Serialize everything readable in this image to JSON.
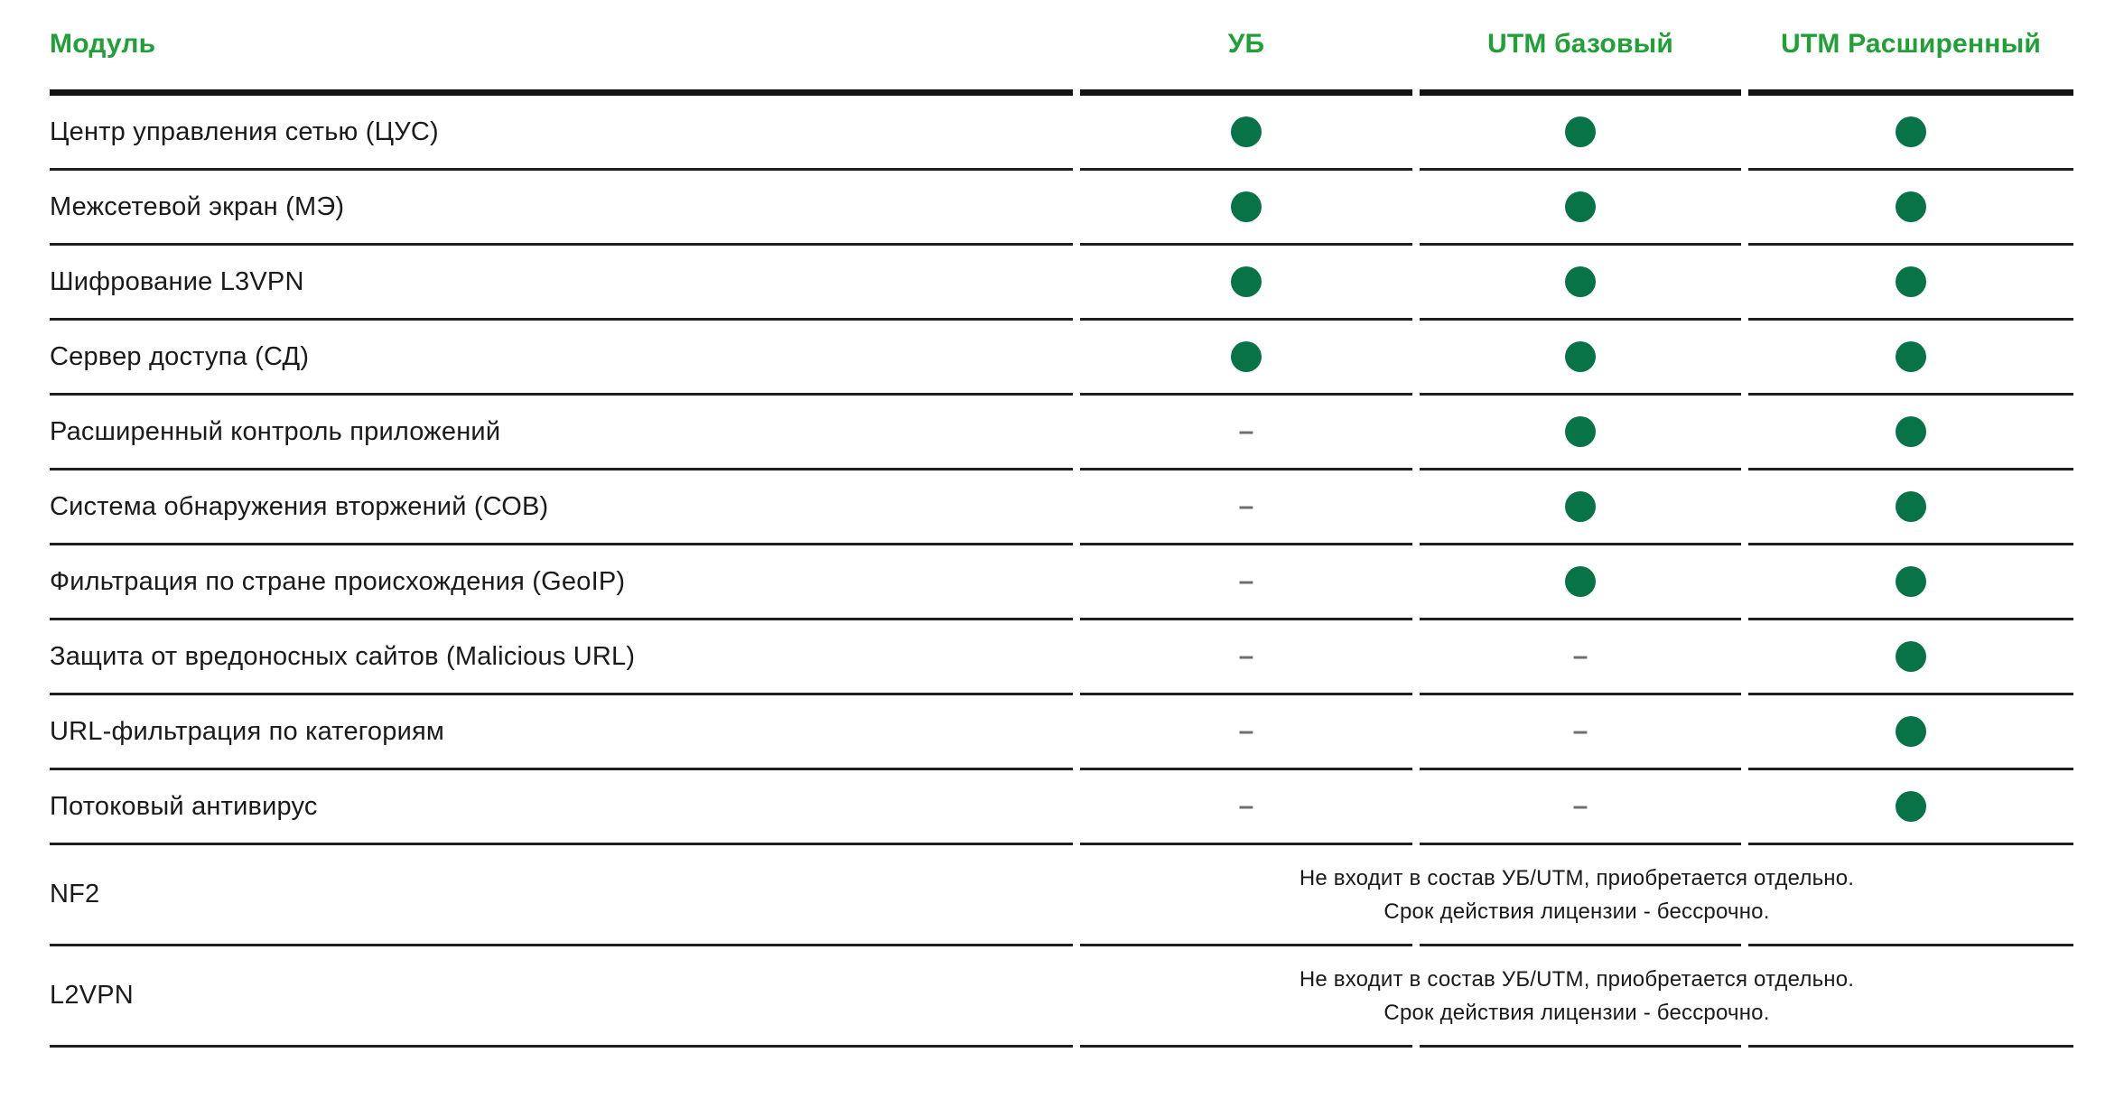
{
  "colors": {
    "header_green": "#21A038",
    "dot_green": "#087346",
    "dash_gray": "#6E6E6E"
  },
  "table": {
    "columns": [
      {
        "label": "Модуль"
      },
      {
        "label": "УБ"
      },
      {
        "label": "UTM базовый"
      },
      {
        "label": "UTM Расширенный"
      }
    ],
    "marks": {
      "included": "included",
      "not_included": "–"
    },
    "rows": [
      {
        "module": "Центр управления сетью (ЦУС)",
        "ub": "included",
        "utm_basic": "included",
        "utm_extended": "included"
      },
      {
        "module": "Межсетевой экран (МЭ)",
        "ub": "included",
        "utm_basic": "included",
        "utm_extended": "included"
      },
      {
        "module": "Шифрование L3VPN",
        "ub": "included",
        "utm_basic": "included",
        "utm_extended": "included"
      },
      {
        "module": "Сервер доступа (СД)",
        "ub": "included",
        "utm_basic": "included",
        "utm_extended": "included"
      },
      {
        "module": "Расширенный контроль приложений",
        "ub": "–",
        "utm_basic": "included",
        "utm_extended": "included"
      },
      {
        "module": "Система обнаружения вторжений (СОВ)",
        "ub": "–",
        "utm_basic": "included",
        "utm_extended": "included"
      },
      {
        "module": "Фильтрация по стране происхождения (GeoIP)",
        "ub": "–",
        "utm_basic": "included",
        "utm_extended": "included"
      },
      {
        "module": "Защита от вредоносных сайтов (Malicious URL)",
        "ub": "–",
        "utm_basic": "–",
        "utm_extended": "included"
      },
      {
        "module": "URL-фильтрация по категориям",
        "ub": "–",
        "utm_basic": "–",
        "utm_extended": "included"
      },
      {
        "module": "Потоковый антивирус",
        "ub": "–",
        "utm_basic": "–",
        "utm_extended": "included"
      }
    ],
    "note_rows": [
      {
        "module": "NF2",
        "note_line1": "Не входит в состав УБ/UTM, приобретается отдельно.",
        "note_line2": "Срок действия лицензии - бессрочно."
      },
      {
        "module": "L2VPN",
        "note_line1": "Не входит в состав УБ/UTM, приобретается отдельно.",
        "note_line2": "Срок действия лицензии - бессрочно."
      }
    ]
  }
}
